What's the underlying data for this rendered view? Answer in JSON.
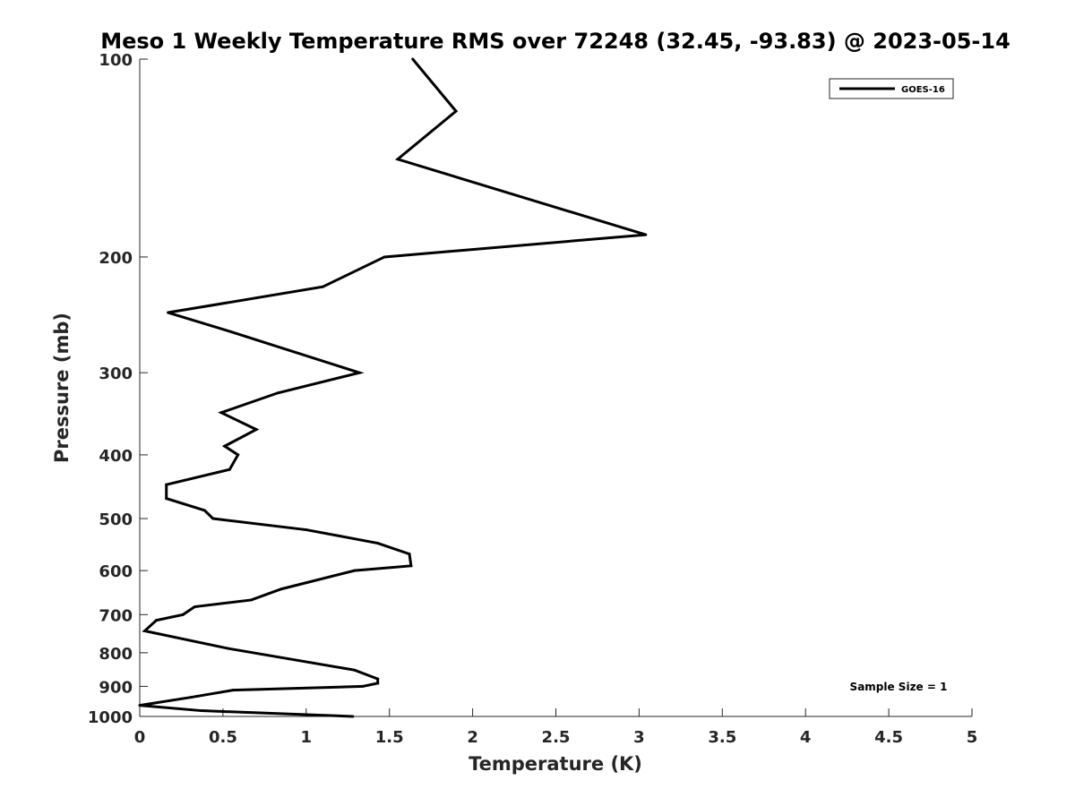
{
  "chart_data": {
    "type": "line",
    "title": "Meso 1 Weekly Temperature RMS over 72248 (32.45, -93.83) @ 2023-05-14",
    "xlabel": "Temperature (K)",
    "ylabel": "Pressure (mb)",
    "xlim": [
      0,
      5
    ],
    "ylim": [
      100,
      1000
    ],
    "y_scale": "log",
    "y_direction": "reversed",
    "x_ticks": [
      0,
      0.5,
      1,
      1.5,
      2,
      2.5,
      3,
      3.5,
      4,
      4.5,
      5
    ],
    "x_tick_labels": [
      "0",
      "0.5",
      "1",
      "1.5",
      "2",
      "2.5",
      "3",
      "3.5",
      "4",
      "4.5",
      "5"
    ],
    "y_ticks": [
      100,
      200,
      300,
      400,
      500,
      600,
      700,
      800,
      900,
      1000
    ],
    "y_tick_labels": [
      "100",
      "200",
      "300",
      "400",
      "500",
      "600",
      "700",
      "800",
      "900",
      "1000"
    ],
    "grid": false,
    "legend_position": "top-right",
    "annotation": "Sample Size = 1",
    "line_color": "#000000",
    "series": [
      {
        "name": "GOES-16",
        "points": [
          {
            "x": 1.64,
            "y": 100
          },
          {
            "x": 1.9,
            "y": 120
          },
          {
            "x": 1.55,
            "y": 142
          },
          {
            "x": 3.04,
            "y": 185
          },
          {
            "x": 1.47,
            "y": 200
          },
          {
            "x": 1.1,
            "y": 222
          },
          {
            "x": 0.17,
            "y": 243
          },
          {
            "x": 0.55,
            "y": 260
          },
          {
            "x": 1.32,
            "y": 300
          },
          {
            "x": 0.83,
            "y": 322
          },
          {
            "x": 0.49,
            "y": 345
          },
          {
            "x": 0.7,
            "y": 366
          },
          {
            "x": 0.51,
            "y": 388
          },
          {
            "x": 0.59,
            "y": 400
          },
          {
            "x": 0.54,
            "y": 421
          },
          {
            "x": 0.16,
            "y": 444
          },
          {
            "x": 0.16,
            "y": 466
          },
          {
            "x": 0.39,
            "y": 486
          },
          {
            "x": 0.44,
            "y": 500
          },
          {
            "x": 1.0,
            "y": 520
          },
          {
            "x": 1.43,
            "y": 545
          },
          {
            "x": 1.62,
            "y": 566
          },
          {
            "x": 1.63,
            "y": 590
          },
          {
            "x": 1.29,
            "y": 600
          },
          {
            "x": 0.85,
            "y": 640
          },
          {
            "x": 0.67,
            "y": 665
          },
          {
            "x": 0.33,
            "y": 681
          },
          {
            "x": 0.26,
            "y": 700
          },
          {
            "x": 0.1,
            "y": 714
          },
          {
            "x": 0.03,
            "y": 741
          },
          {
            "x": 0.53,
            "y": 788
          },
          {
            "x": 1.29,
            "y": 850
          },
          {
            "x": 1.43,
            "y": 877
          },
          {
            "x": 1.43,
            "y": 890
          },
          {
            "x": 1.34,
            "y": 900
          },
          {
            "x": 0.56,
            "y": 912
          },
          {
            "x": 0.31,
            "y": 935
          },
          {
            "x": 0.0,
            "y": 962
          },
          {
            "x": 0.37,
            "y": 980
          },
          {
            "x": 1.28,
            "y": 1000
          }
        ]
      }
    ]
  }
}
